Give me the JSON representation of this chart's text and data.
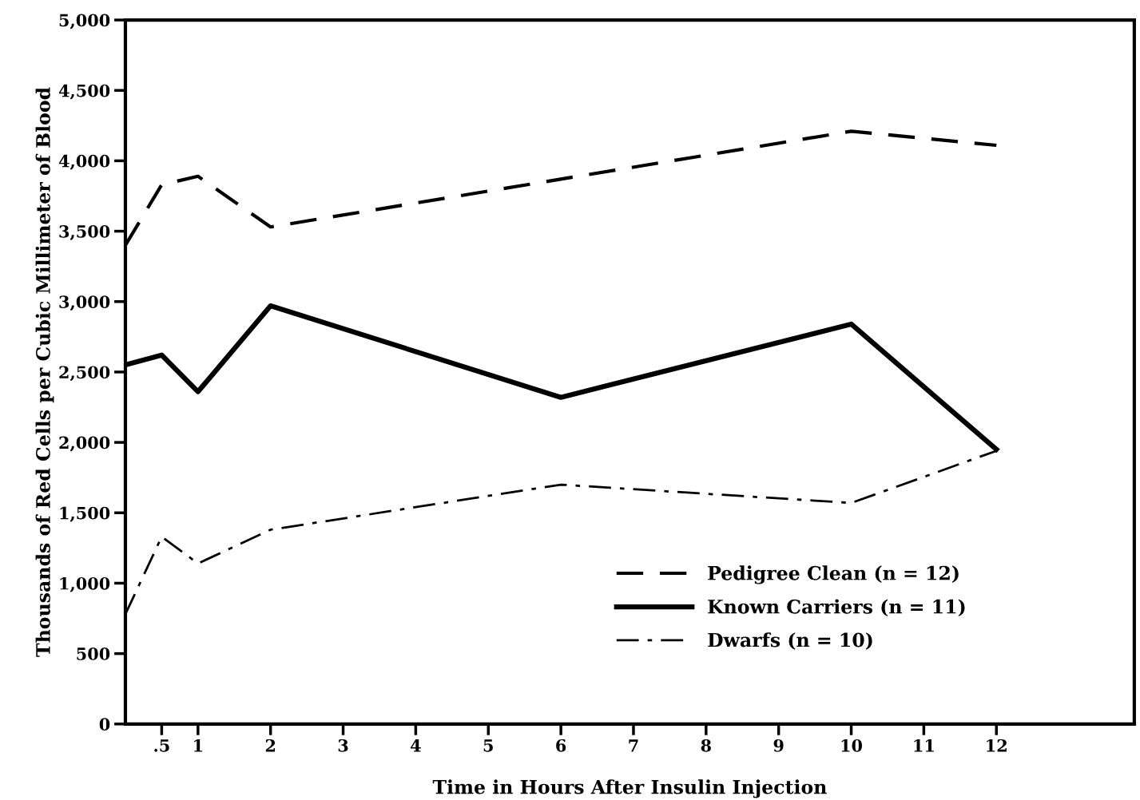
{
  "chart_data": {
    "type": "line",
    "xlabel": "Time in Hours After Insulin Injection",
    "ylabel": "Thousands of Red Cells per Cubic Millimeter of Blood",
    "xlim": [
      0,
      13.9
    ],
    "xticks": [
      {
        "value": 0.5,
        "label": ".5"
      },
      1,
      2,
      3,
      4,
      5,
      6,
      7,
      8,
      9,
      10,
      11,
      12
    ],
    "ylim": [
      0,
      5000
    ],
    "yticks": [
      0,
      500,
      {
        "value": 1000,
        "label": "1,000"
      },
      {
        "value": 1500,
        "label": "1,500"
      },
      {
        "value": 2000,
        "label": "2,000"
      },
      {
        "value": 2500,
        "label": "2,500"
      },
      {
        "value": 3000,
        "label": "3,000"
      },
      {
        "value": 3500,
        "label": "3,500"
      },
      {
        "value": 4000,
        "label": "4,000"
      },
      {
        "value": 4500,
        "label": "4,500"
      },
      {
        "value": 5000,
        "label": "5,000"
      }
    ],
    "grid": false,
    "legend": "bottom right",
    "marker": "none",
    "series": [
      {
        "name": "Pedigree Clean (n = 12)",
        "color": "#000000",
        "line_style": "dashed",
        "x": [
          0,
          0.5,
          1,
          2,
          10,
          12
        ],
        "values": [
          3400,
          3830,
          3890,
          3530,
          4210,
          4110
        ]
      },
      {
        "name": "Known Carriers (n = 11)",
        "color": "#000000",
        "line_style": "solid",
        "x": [
          0,
          0.5,
          1,
          2,
          6,
          10,
          12
        ],
        "values": [
          2550,
          2620,
          2360,
          2970,
          2320,
          2840,
          1950
        ]
      },
      {
        "name": "Dwarfs (n = 10)",
        "color": "#000000",
        "line_style": "dashdot",
        "x": [
          0,
          0.5,
          1,
          2,
          6,
          10,
          12
        ],
        "values": [
          780,
          1330,
          1140,
          1380,
          1700,
          1570,
          1940
        ]
      }
    ]
  }
}
